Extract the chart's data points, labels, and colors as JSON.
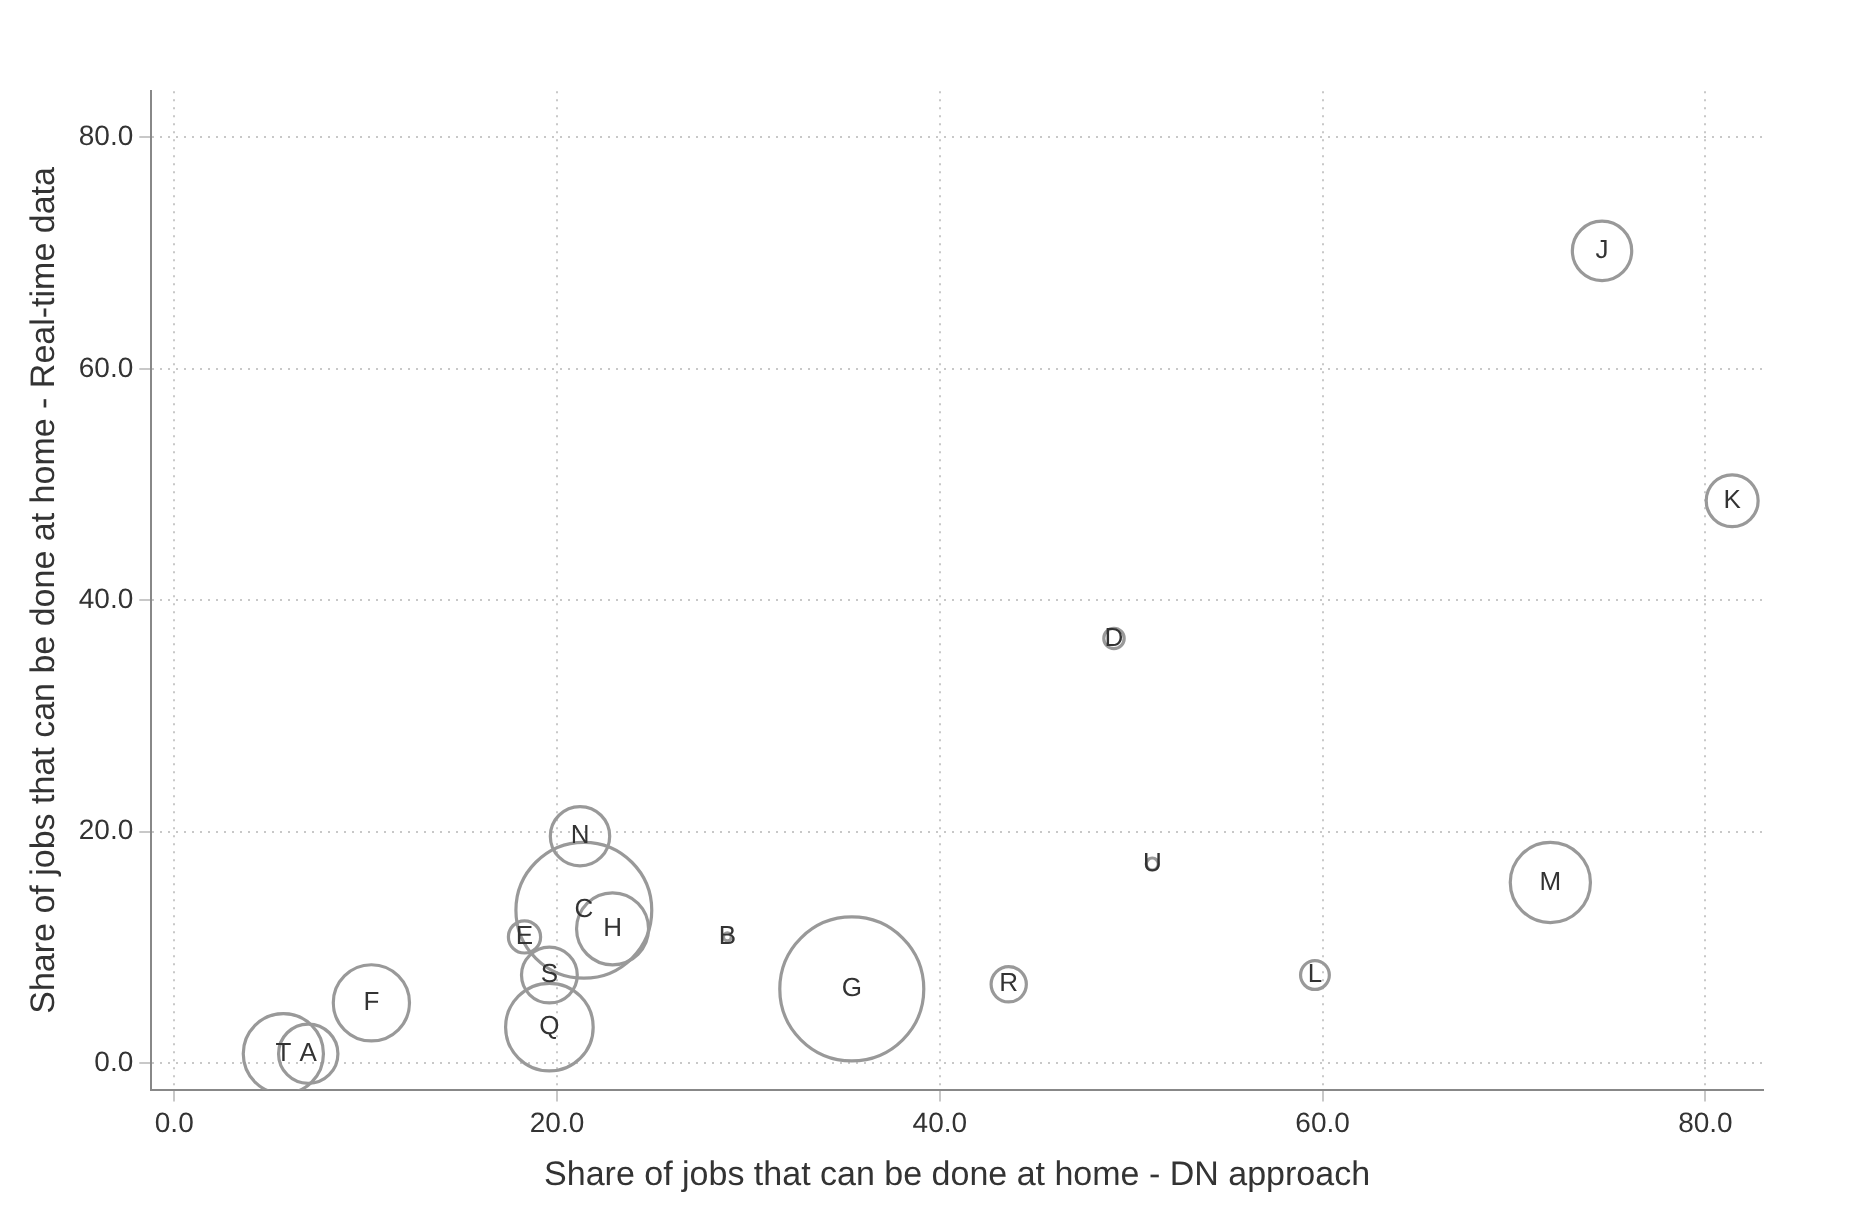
{
  "chart_data": {
    "type": "bubble",
    "xlabel": "Share of jobs that can be done at home - DN approach",
    "ylabel": "Share of jobs that can be done at home - Real-time data",
    "xlim": [
      -1.2,
      83
    ],
    "ylim": [
      -2.3,
      84
    ],
    "xticks": [
      {
        "value": 0,
        "label": "0.0"
      },
      {
        "value": 20,
        "label": "20.0"
      },
      {
        "value": 40,
        "label": "40.0"
      },
      {
        "value": 60,
        "label": "60.0"
      },
      {
        "value": 80,
        "label": "80.0"
      }
    ],
    "yticks": [
      {
        "value": 0,
        "label": "0.0"
      },
      {
        "value": 20,
        "label": "20.0"
      },
      {
        "value": 40,
        "label": "40.0"
      },
      {
        "value": 60,
        "label": "60.0"
      },
      {
        "value": 80,
        "label": "80.0"
      }
    ],
    "grid": true,
    "marker": "circle",
    "series": [
      {
        "color": "#999999",
        "x": [
          74.6,
          81.4,
          49.1,
          51.1,
          71.9,
          59.6,
          43.6,
          35.4,
          28.9,
          21.2,
          21.4,
          22.9,
          18.3,
          19.6,
          19.6,
          10.3,
          5.7,
          7.0
        ],
        "values": [
          70.2,
          48.6,
          36.7,
          17.2,
          15.6,
          7.6,
          6.8,
          6.4,
          10.9,
          19.6,
          13.2,
          11.6,
          10.9,
          7.6,
          3.1,
          5.2,
          0.8,
          0.8
        ],
        "sizes": [
          0.17,
          0.13,
          0.02,
          0.007,
          0.31,
          0.04,
          0.06,
          1,
          0.003,
          0.17,
          0.89,
          0.25,
          0.05,
          0.15,
          0.37,
          0.28,
          0.31,
          0.17
        ],
        "value_labels": [
          "J",
          "K",
          "D",
          "U",
          "M",
          "L",
          "R",
          "G",
          "B",
          "N",
          "C",
          "H",
          "E",
          "S",
          "Q",
          "F",
          "T",
          "A"
        ]
      }
    ]
  }
}
